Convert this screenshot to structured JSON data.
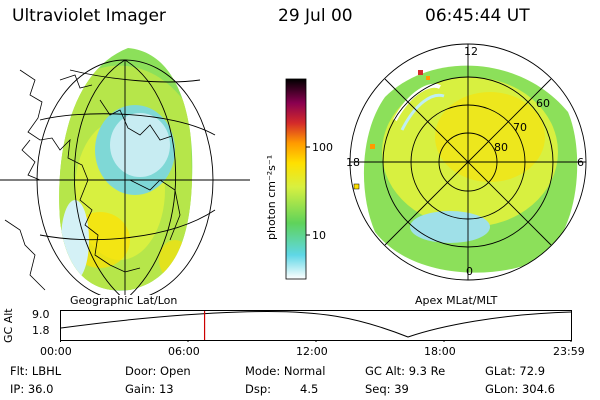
{
  "header": {
    "instrument": "Ultraviolet Imager",
    "date": "29 Jul 00",
    "time": "06:45:44 UT"
  },
  "left_panel": {
    "caption": "Geographic Lat/Lon"
  },
  "right_panel": {
    "caption": "Apex MLat/MLT",
    "mlt_labels": [
      "12",
      "18",
      "6",
      "0"
    ],
    "lat_labels": [
      "60",
      "70",
      "80"
    ]
  },
  "colorbar": {
    "unit_label": "photon cm⁻²s⁻¹",
    "tick_labels": [
      "100",
      "10"
    ],
    "tick_values": [
      100,
      10
    ],
    "range": [
      2,
      1000
    ],
    "scale": "log",
    "colors": [
      "#ffffff",
      "#5fd7e6",
      "#5fd35a",
      "#d8f040",
      "#ffe000",
      "#ff9a00",
      "#d42a2a",
      "#8a0050",
      "#000000"
    ]
  },
  "gc_alt_plot": {
    "ylabel": "GC Alt",
    "ytick_labels": [
      "9.0",
      "1.8"
    ],
    "xtick_labels": [
      "00:00",
      "06:00",
      "12:00",
      "18:00",
      "23:59"
    ],
    "marker_time": "06:45:44",
    "marker_color": "#cc0000"
  },
  "info": {
    "flt": "Flt: LBHL",
    "ip": "IP: 36.0",
    "door": "Door: Open",
    "gain": "Gain: 13",
    "mode": "Mode: Normal",
    "dsp_label": "Dsp:",
    "dsp_value": "4.5",
    "gcalt": "GC Alt: 9.3 Re",
    "seq": "Seq: 39",
    "glat": "GLat: 72.9",
    "glon": "GLon: 304.6"
  }
}
